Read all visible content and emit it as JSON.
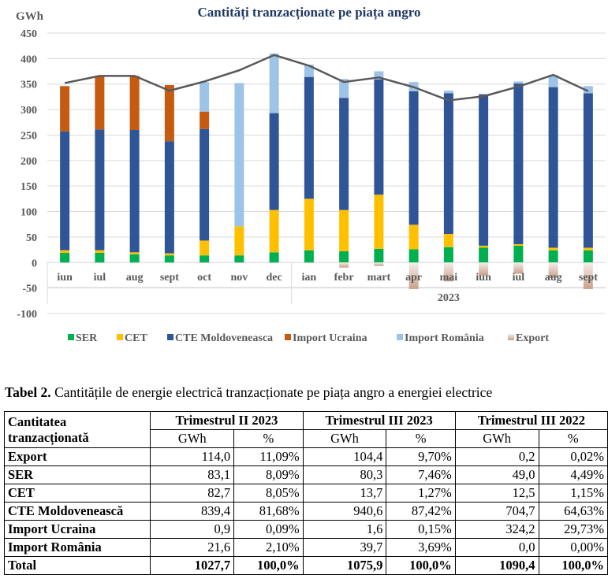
{
  "chart_data": {
    "type": "bar",
    "stacked": true,
    "title": "Cantități tranzacționate pe piața angro",
    "ylabel": "GWh",
    "xlabel": "",
    "ylim": [
      -100,
      450
    ],
    "yticks": [
      450,
      400,
      350,
      300,
      250,
      200,
      150,
      100,
      50,
      0,
      -50,
      -100
    ],
    "ytick_labels": [
      "450",
      "400",
      "350",
      "300",
      "250",
      "200",
      "150",
      "100",
      "50",
      "0",
      "-50",
      "-100"
    ],
    "grid": true,
    "legend_position": "bottom",
    "categories": [
      "iun",
      "iul",
      "aug",
      "sept",
      "oct",
      "nov",
      "dec",
      "ian",
      "febr",
      "mart",
      "apr",
      "mai",
      "iun",
      "iul",
      "aug",
      "sept"
    ],
    "category_groups": [
      {
        "label": "",
        "span": 7
      },
      {
        "label": "2023",
        "span": 9
      }
    ],
    "series": [
      {
        "name": "SER",
        "color": "#00b050",
        "values": [
          19,
          19,
          16,
          14,
          14,
          14,
          20,
          24,
          22,
          27,
          26,
          30,
          29,
          33,
          24,
          24
        ]
      },
      {
        "name": "CET",
        "color": "#ffc000",
        "values": [
          5,
          5,
          4,
          4,
          29,
          57,
          83,
          101,
          81,
          106,
          48,
          26,
          4,
          3,
          5,
          5
        ]
      },
      {
        "name": "CTE Moldoveneasca",
        "color": "#2f5597",
        "values": [
          233,
          237,
          240,
          220,
          219,
          0,
          190,
          239,
          220,
          226,
          262,
          276,
          297,
          315,
          315,
          303
        ]
      },
      {
        "name": "Import Ucraina",
        "color": "#c55a11",
        "values": [
          89,
          105,
          106,
          110,
          34,
          0,
          0,
          0,
          0,
          0,
          0,
          0,
          0,
          0,
          0,
          0
        ]
      },
      {
        "name": "Import România",
        "color": "#9dc3e6",
        "values": [
          0,
          0,
          0,
          0,
          58,
          281,
          117,
          24,
          37,
          16,
          18,
          5,
          0,
          4,
          24,
          14
        ]
      },
      {
        "name": "Export",
        "color": "#d9b8a8",
        "values": [
          0,
          0,
          0,
          0,
          -1,
          0,
          0,
          0,
          -10,
          -7,
          -52,
          -37,
          -25,
          -22,
          -30,
          -52
        ]
      }
    ],
    "line": {
      "name": "Total",
      "color": "#595959",
      "values": [
        352,
        366,
        366,
        337,
        355,
        377,
        407,
        386,
        354,
        363,
        344,
        318,
        326,
        345,
        368,
        336
      ]
    }
  },
  "table": {
    "caption_bold": "Tabel 2.",
    "caption_text": " Cantitățile de energie electrică tranzacționate pe piața angro a energiei electrice",
    "row_header": "Cantitatea tranzacționată",
    "periods": [
      "Trimestrul II 2023",
      "Trimestrul III 2023",
      "Trimestrul III 2022"
    ],
    "sub_headers": [
      "GWh",
      "%"
    ],
    "rows": [
      {
        "label": "Export",
        "values": [
          "114,0",
          "11,09%",
          "104,4",
          "9,70%",
          "0,2",
          "0,02%"
        ]
      },
      {
        "label": "SER",
        "values": [
          "83,1",
          "8,09%",
          "80,3",
          "7,46%",
          "49,0",
          "4,49%"
        ]
      },
      {
        "label": "CET",
        "values": [
          "82,7",
          "8,05%",
          "13,7",
          "1,27%",
          "12,5",
          "1,15%"
        ]
      },
      {
        "label": "CTE Moldovenească",
        "values": [
          "839,4",
          "81,68%",
          "940,6",
          "87,42%",
          "704,7",
          "64,63%"
        ]
      },
      {
        "label": "Import Ucraina",
        "values": [
          "0,9",
          "0,09%",
          "1,6",
          "0,15%",
          "324,2",
          "29,73%"
        ]
      },
      {
        "label": "Import România",
        "values": [
          "21,6",
          "2,10%",
          "39,7",
          "3,69%",
          "0,0",
          "0,00%"
        ]
      },
      {
        "label": "Total",
        "values": [
          "1027,7",
          "100,0%",
          "1075,9",
          "100,0%",
          "1090,4",
          "100,0%"
        ]
      }
    ]
  }
}
